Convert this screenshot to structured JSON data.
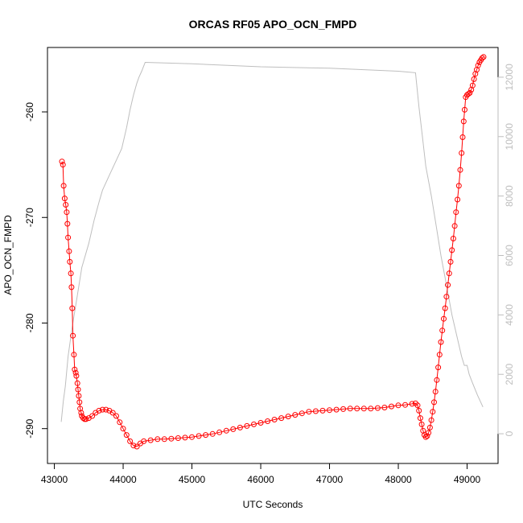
{
  "chart_data": {
    "type": "scatter",
    "title": "ORCAS RF05 APO_OCN_FMPD",
    "xlabel": "UTC Seconds",
    "ylabel": "APO_OCN_FMPD",
    "xlim": [
      42900,
      49450
    ],
    "ylim": [
      -293.3,
      -253.9
    ],
    "y2lim": [
      -1000,
      13000
    ],
    "x_ticks": [
      43000,
      44000,
      45000,
      46000,
      47000,
      48000,
      49000
    ],
    "y_ticks": [
      -290,
      -280,
      -270,
      -260
    ],
    "y2_ticks": [
      0,
      2000,
      4000,
      6000,
      8000,
      10000,
      12000
    ],
    "x_tick_labels": [
      "43000",
      "44000",
      "45000",
      "46000",
      "47000",
      "48000",
      "49000"
    ],
    "y_tick_labels": [
      "-290",
      "-280",
      "-270",
      "-260"
    ],
    "y2_tick_labels": [
      "0",
      "2000",
      "4000",
      "6000",
      "8000",
      "10000",
      "12000"
    ],
    "series": [
      {
        "kind": "points",
        "axis": "left",
        "color": "#ff0000",
        "points": [
          [
            43110,
            -264.7
          ],
          [
            43125,
            -265.0
          ],
          [
            43135,
            -267.0
          ],
          [
            43150,
            -268.2
          ],
          [
            43165,
            -268.8
          ],
          [
            43180,
            -269.5
          ],
          [
            43190,
            -270.6
          ],
          [
            43200,
            -271.9
          ],
          [
            43215,
            -273.2
          ],
          [
            43225,
            -274.2
          ],
          [
            43240,
            -275.3
          ],
          [
            43250,
            -276.6
          ],
          [
            43260,
            -278.6
          ],
          [
            43270,
            -281.2
          ],
          [
            43285,
            -283.0
          ],
          [
            43295,
            -284.4
          ],
          [
            43310,
            -284.7
          ],
          [
            43320,
            -285.0
          ],
          [
            43335,
            -285.7
          ],
          [
            43345,
            -286.3
          ],
          [
            43355,
            -286.9
          ],
          [
            43365,
            -287.5
          ],
          [
            43375,
            -288.1
          ],
          [
            43390,
            -288.5
          ],
          [
            43400,
            -288.8
          ],
          [
            43420,
            -289.0
          ],
          [
            43440,
            -289.1
          ],
          [
            43460,
            -289.1
          ],
          [
            43500,
            -289.0
          ],
          [
            43550,
            -288.8
          ],
          [
            43600,
            -288.5
          ],
          [
            43650,
            -288.3
          ],
          [
            43700,
            -288.2
          ],
          [
            43750,
            -288.2
          ],
          [
            43800,
            -288.3
          ],
          [
            43850,
            -288.5
          ],
          [
            43900,
            -288.8
          ],
          [
            43950,
            -289.4
          ],
          [
            44000,
            -290.0
          ],
          [
            44050,
            -290.6
          ],
          [
            44100,
            -291.2
          ],
          [
            44150,
            -291.6
          ],
          [
            44200,
            -291.7
          ],
          [
            44250,
            -291.4
          ],
          [
            44300,
            -291.2
          ],
          [
            44400,
            -291.1
          ],
          [
            44500,
            -291.0
          ],
          [
            44600,
            -291.0
          ],
          [
            44700,
            -290.95
          ],
          [
            44800,
            -290.9
          ],
          [
            44900,
            -290.85
          ],
          [
            45000,
            -290.8
          ],
          [
            45100,
            -290.7
          ],
          [
            45200,
            -290.6
          ],
          [
            45300,
            -290.5
          ],
          [
            45400,
            -290.35
          ],
          [
            45500,
            -290.2
          ],
          [
            45600,
            -290.05
          ],
          [
            45700,
            -289.9
          ],
          [
            45800,
            -289.75
          ],
          [
            45900,
            -289.6
          ],
          [
            46000,
            -289.45
          ],
          [
            46100,
            -289.3
          ],
          [
            46200,
            -289.15
          ],
          [
            46300,
            -289.0
          ],
          [
            46400,
            -288.85
          ],
          [
            46500,
            -288.7
          ],
          [
            46600,
            -288.55
          ],
          [
            46700,
            -288.4
          ],
          [
            46800,
            -288.35
          ],
          [
            46900,
            -288.3
          ],
          [
            47000,
            -288.25
          ],
          [
            47100,
            -288.2
          ],
          [
            47200,
            -288.15
          ],
          [
            47300,
            -288.1
          ],
          [
            47400,
            -288.1
          ],
          [
            47500,
            -288.1
          ],
          [
            47600,
            -288.1
          ],
          [
            47700,
            -288.05
          ],
          [
            47800,
            -288.0
          ],
          [
            47900,
            -287.9
          ],
          [
            48000,
            -287.8
          ],
          [
            48100,
            -287.75
          ],
          [
            48200,
            -287.65
          ],
          [
            48250,
            -287.6
          ],
          [
            48280,
            -287.8
          ],
          [
            48300,
            -288.3
          ],
          [
            48320,
            -289.0
          ],
          [
            48340,
            -289.6
          ],
          [
            48360,
            -290.2
          ],
          [
            48380,
            -290.6
          ],
          [
            48400,
            -290.8
          ],
          [
            48420,
            -290.7
          ],
          [
            48440,
            -290.4
          ],
          [
            48460,
            -289.9
          ],
          [
            48480,
            -289.2
          ],
          [
            48500,
            -288.4
          ],
          [
            48520,
            -287.5
          ],
          [
            48540,
            -286.5
          ],
          [
            48560,
            -285.4
          ],
          [
            48580,
            -284.2
          ],
          [
            48600,
            -283.0
          ],
          [
            48620,
            -281.8
          ],
          [
            48640,
            -280.7
          ],
          [
            48660,
            -279.6
          ],
          [
            48680,
            -278.6
          ],
          [
            48700,
            -277.5
          ],
          [
            48720,
            -276.4
          ],
          [
            48740,
            -275.3
          ],
          [
            48760,
            -274.2
          ],
          [
            48780,
            -273.1
          ],
          [
            48800,
            -272.0
          ],
          [
            48820,
            -270.8
          ],
          [
            48840,
            -269.5
          ],
          [
            48860,
            -268.3
          ],
          [
            48880,
            -267.0
          ],
          [
            48900,
            -265.5
          ],
          [
            48920,
            -263.9
          ],
          [
            48935,
            -262.4
          ],
          [
            48950,
            -260.9
          ],
          [
            48965,
            -259.8
          ],
          [
            48980,
            -258.6
          ],
          [
            49000,
            -258.4
          ],
          [
            49020,
            -258.3
          ],
          [
            49040,
            -258.2
          ],
          [
            49060,
            -257.9
          ],
          [
            49080,
            -257.5
          ],
          [
            49100,
            -256.9
          ],
          [
            49120,
            -256.4
          ],
          [
            49140,
            -256.0
          ],
          [
            49160,
            -255.6
          ],
          [
            49180,
            -255.3
          ],
          [
            49200,
            -255.1
          ],
          [
            49220,
            -254.9
          ],
          [
            49240,
            -254.8
          ]
        ]
      },
      {
        "kind": "line",
        "axis": "right",
        "color": "#bebebe",
        "points": [
          [
            43100,
            400
          ],
          [
            43130,
            1100
          ],
          [
            43160,
            1600
          ],
          [
            43200,
            2600
          ],
          [
            43260,
            3600
          ],
          [
            43330,
            4600
          ],
          [
            43400,
            5600
          ],
          [
            43500,
            6400
          ],
          [
            43580,
            7200
          ],
          [
            43650,
            7800
          ],
          [
            43700,
            8200
          ],
          [
            43800,
            8700
          ],
          [
            43900,
            9200
          ],
          [
            43980,
            9600
          ],
          [
            44050,
            10300
          ],
          [
            44100,
            10900
          ],
          [
            44150,
            11400
          ],
          [
            44200,
            11800
          ],
          [
            44230,
            12000
          ],
          [
            44270,
            12200
          ],
          [
            44320,
            12500
          ],
          [
            45000,
            12450
          ],
          [
            46000,
            12350
          ],
          [
            47000,
            12300
          ],
          [
            48000,
            12200
          ],
          [
            48250,
            12150
          ],
          [
            48300,
            11000
          ],
          [
            48350,
            10000
          ],
          [
            48400,
            9000
          ],
          [
            48480,
            8000
          ],
          [
            48550,
            7000
          ],
          [
            48620,
            6000
          ],
          [
            48700,
            5000
          ],
          [
            48780,
            4000
          ],
          [
            48850,
            3300
          ],
          [
            48920,
            2600
          ],
          [
            48960,
            2300
          ],
          [
            49000,
            2300
          ],
          [
            49030,
            2000
          ],
          [
            49080,
            1700
          ],
          [
            49150,
            1300
          ],
          [
            49230,
            900
          ]
        ]
      }
    ]
  }
}
